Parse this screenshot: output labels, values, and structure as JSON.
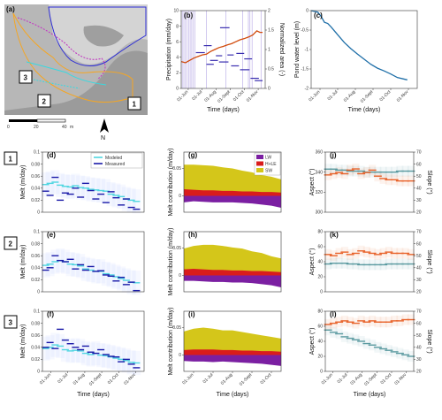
{
  "map": {
    "panel_label": "(a)",
    "site_labels": [
      "1",
      "2",
      "3"
    ],
    "scale_ticks": [
      "0",
      "20",
      "40"
    ],
    "scale_unit": "m",
    "north_symbol": "N"
  },
  "row_labels": [
    "1",
    "2",
    "3"
  ],
  "panel_labels": [
    "(b)",
    "(c)",
    "(d)",
    "(e)",
    "(f)",
    "(g)",
    "(h)",
    "(i)",
    "(j)",
    "(k)",
    "(l)"
  ],
  "colors": {
    "precip": "#5b3cc4",
    "area": "#d14a0b",
    "pond": "#1f6fa8",
    "modeled": "#4fd6e0",
    "measured": "#1a1aa8",
    "lw": "#7b1fa2",
    "hle": "#d91c1c",
    "sw": "#d4c61a",
    "aspect": "#5b9aa0",
    "slope": "#e8632b",
    "map_orange": "#f5a623",
    "map_blue": "#2b2bd6",
    "map_magenta": "#c23cc2",
    "map_cyan": "#38d9e0"
  },
  "chart_data": [
    {
      "id": "b",
      "type": "line",
      "xlabel": "Time (days)",
      "ylabel_left": "Precipitation (mm/day)",
      "ylabel_right": "Normalized area (-)",
      "x_ticks": [
        "01-Jun",
        "01-Jul",
        "01-Aug",
        "01-Sept",
        "01-Oct",
        "01-Nov"
      ],
      "x_range": [
        0,
        160
      ],
      "ylim_left": [
        0,
        10
      ],
      "yticks_left": [
        0,
        2,
        4,
        6,
        8,
        10
      ],
      "ylim_right": [
        0,
        2
      ],
      "yticks_right": [
        0,
        0.5,
        1,
        1.5,
        2
      ],
      "precip_segments": [
        {
          "x0": 28,
          "x1": 45,
          "y": 4.6
        },
        {
          "x0": 43,
          "x1": 58,
          "y": 5.5
        },
        {
          "x0": 48,
          "x1": 62,
          "y": 3.1
        },
        {
          "x0": 55,
          "x1": 70,
          "y": 3.6
        },
        {
          "x0": 66,
          "x1": 78,
          "y": 4.2
        },
        {
          "x0": 72,
          "x1": 90,
          "y": 3.4
        },
        {
          "x0": 74,
          "x1": 92,
          "y": 7.8
        },
        {
          "x0": 88,
          "x1": 100,
          "y": 4.3
        },
        {
          "x0": 95,
          "x1": 110,
          "y": 2.9
        },
        {
          "x0": 105,
          "x1": 120,
          "y": 4.5
        },
        {
          "x0": 112,
          "x1": 130,
          "y": 2.4
        },
        {
          "x0": 120,
          "x1": 135,
          "y": 3.8
        },
        {
          "x0": 132,
          "x1": 148,
          "y": 1.3
        },
        {
          "x0": 140,
          "x1": 155,
          "y": 1.0
        }
      ],
      "event_days": [
        2,
        5,
        8,
        11,
        14,
        17,
        20,
        23,
        26,
        48,
        85,
        117,
        128,
        131,
        135,
        152
      ],
      "area_x": [
        0,
        8,
        16,
        24,
        32,
        40,
        48,
        56,
        64,
        72,
        80,
        88,
        96,
        104,
        112,
        120,
        128,
        136,
        144,
        150,
        155
      ],
      "area_y": [
        0.69,
        0.66,
        0.72,
        0.78,
        0.82,
        0.86,
        0.88,
        0.95,
        1.0,
        1.05,
        1.08,
        1.12,
        1.15,
        1.2,
        1.25,
        1.28,
        1.32,
        1.37,
        1.48,
        1.44,
        1.44
      ]
    },
    {
      "id": "c",
      "type": "line",
      "xlabel": "Time (days)",
      "ylabel": "Pond water level (m)",
      "x_ticks": [
        "01-Jun",
        "01-Jul",
        "01-Aug",
        "01-Sept",
        "01-Oct",
        "01-Nov"
      ],
      "x_range": [
        0,
        160
      ],
      "ylim": [
        -2.0,
        0
      ],
      "yticks": [
        -2,
        -1.5,
        -1,
        -0.5,
        0
      ],
      "x": [
        0,
        5,
        10,
        15,
        20,
        25,
        30,
        40,
        50,
        60,
        70,
        80,
        90,
        100,
        110,
        120,
        130,
        140,
        145
      ],
      "y": [
        0.0,
        -0.02,
        -0.04,
        -0.15,
        -0.3,
        -0.33,
        -0.42,
        -0.62,
        -0.82,
        -0.98,
        -1.12,
        -1.25,
        -1.38,
        -1.48,
        -1.55,
        -1.63,
        -1.72,
        -1.76,
        -1.78
      ]
    },
    {
      "id": "d",
      "row": 1,
      "type": "scatter",
      "ylabel": "Melt (m/day)",
      "legend": [
        "Modeled",
        "Measured"
      ],
      "ylim": [
        0,
        0.1
      ],
      "yticks": [
        0,
        0.02,
        0.04,
        0.06,
        0.08,
        0.1
      ],
      "x_range": [
        0,
        160
      ],
      "modeled_x": [
        5,
        12,
        20,
        28,
        36,
        44,
        52,
        60,
        68,
        76,
        84,
        92,
        100,
        108,
        116,
        124,
        132,
        140,
        148
      ],
      "modeled_y": [
        0.046,
        0.048,
        0.05,
        0.045,
        0.043,
        0.042,
        0.044,
        0.041,
        0.04,
        0.038,
        0.037,
        0.036,
        0.035,
        0.03,
        0.028,
        0.026,
        0.022,
        0.02,
        0.018
      ],
      "measured_x": [
        5,
        12,
        20,
        28,
        36,
        44,
        52,
        60,
        68,
        76,
        84,
        92,
        100,
        108,
        116,
        124,
        132,
        140,
        148
      ],
      "measured_y": [
        0.035,
        0.028,
        0.058,
        0.02,
        0.032,
        0.03,
        0.04,
        0.025,
        0.048,
        0.036,
        0.022,
        0.03,
        0.016,
        0.034,
        0.024,
        0.012,
        0.022,
        0.008,
        0.005
      ]
    },
    {
      "id": "e",
      "row": 2,
      "type": "scatter",
      "ylabel": "Melt (m/day)",
      "ylim": [
        0,
        0.1
      ],
      "yticks": [
        0,
        0.02,
        0.04,
        0.06,
        0.08,
        0.1
      ],
      "x_range": [
        0,
        160
      ],
      "modeled_x": [
        5,
        12,
        20,
        28,
        36,
        44,
        52,
        60,
        68,
        76,
        84,
        92,
        100,
        108,
        116,
        124,
        132,
        140,
        148
      ],
      "modeled_y": [
        0.044,
        0.046,
        0.05,
        0.052,
        0.05,
        0.046,
        0.045,
        0.043,
        0.038,
        0.036,
        0.034,
        0.034,
        0.03,
        0.028,
        0.025,
        0.022,
        0.019,
        0.016,
        0.015
      ],
      "measured_x": [
        5,
        12,
        20,
        28,
        36,
        44,
        52,
        60,
        68,
        76,
        84,
        92,
        100,
        108,
        116,
        124,
        132,
        140,
        148
      ],
      "measured_y": [
        0.036,
        0.04,
        0.06,
        0.052,
        0.05,
        0.054,
        0.038,
        0.045,
        0.036,
        0.042,
        0.034,
        0.035,
        0.028,
        0.026,
        0.018,
        0.024,
        0.012,
        0.016,
        0.002
      ]
    },
    {
      "id": "f",
      "row": 3,
      "type": "scatter",
      "ylabel": "Melt (m/day)",
      "xlabel": "Time (days)",
      "x_ticks": [
        "01-Jun",
        "01-Jul",
        "01-Aug",
        "01-Sept",
        "01-Oct",
        "01-Nov"
      ],
      "ylim": [
        0,
        0.1
      ],
      "yticks": [
        0,
        0.02,
        0.04,
        0.06,
        0.08,
        0.1
      ],
      "x_range": [
        0,
        160
      ],
      "modeled_x": [
        5,
        12,
        20,
        28,
        36,
        44,
        52,
        60,
        68,
        76,
        84,
        92,
        100,
        108,
        116,
        124,
        132,
        140,
        148
      ],
      "modeled_y": [
        0.038,
        0.04,
        0.044,
        0.042,
        0.036,
        0.034,
        0.035,
        0.034,
        0.03,
        0.028,
        0.03,
        0.027,
        0.026,
        0.024,
        0.022,
        0.02,
        0.018,
        0.015,
        0.014
      ],
      "measured_x": [
        5,
        12,
        20,
        28,
        36,
        44,
        52,
        60,
        68,
        76,
        84,
        92,
        100,
        108,
        116,
        124,
        132,
        140,
        148
      ],
      "measured_y": [
        0.04,
        0.048,
        0.038,
        0.07,
        0.052,
        0.046,
        0.04,
        0.036,
        0.042,
        0.032,
        0.03,
        0.036,
        0.028,
        0.025,
        0.024,
        0.016,
        0.02,
        0.012,
        0.006
      ]
    },
    {
      "id": "g",
      "row": 1,
      "type": "area",
      "ylabel": "Melt contribution (m/day)",
      "legend": [
        "LW",
        "H+LE",
        "SW"
      ],
      "ylim": [
        -0.03,
        0.08
      ],
      "yticks": [
        0,
        0.05
      ],
      "x": [
        0,
        16,
        32,
        48,
        64,
        80,
        96,
        112,
        128,
        144,
        160
      ],
      "lw": [
        -0.012,
        -0.01,
        -0.011,
        -0.012,
        -0.012,
        -0.012,
        -0.013,
        -0.014,
        -0.016,
        -0.018,
        -0.022
      ],
      "hle": [
        0.012,
        0.011,
        0.01,
        0.01,
        0.009,
        0.009,
        0.008,
        0.008,
        0.007,
        0.007,
        0.006
      ],
      "sw": [
        0.045,
        0.046,
        0.046,
        0.045,
        0.043,
        0.041,
        0.038,
        0.035,
        0.031,
        0.028,
        0.024
      ]
    },
    {
      "id": "h",
      "row": 2,
      "type": "area",
      "ylabel": "Melt contribution (m/day)",
      "ylim": [
        -0.03,
        0.08
      ],
      "yticks": [
        0,
        0.05
      ],
      "x": [
        0,
        16,
        32,
        48,
        64,
        80,
        96,
        112,
        128,
        144,
        160
      ],
      "lw": [
        -0.01,
        -0.01,
        -0.011,
        -0.012,
        -0.012,
        -0.013,
        -0.013,
        -0.014,
        -0.016,
        -0.018,
        -0.022
      ],
      "hle": [
        0.011,
        0.012,
        0.011,
        0.01,
        0.01,
        0.009,
        0.009,
        0.008,
        0.008,
        0.007,
        0.006
      ],
      "sw": [
        0.038,
        0.042,
        0.045,
        0.046,
        0.044,
        0.042,
        0.04,
        0.036,
        0.033,
        0.028,
        0.025
      ]
    },
    {
      "id": "i",
      "row": 3,
      "type": "area",
      "ylabel": "Melt contribution (m/day)",
      "xlabel": "Time (days)",
      "x_ticks": [
        "01-Jun",
        "01-Jul",
        "01-Aug",
        "01-Sept",
        "01-Oct"
      ],
      "ylim": [
        -0.03,
        0.08
      ],
      "yticks": [
        0,
        0.05
      ],
      "x": [
        0,
        16,
        32,
        48,
        64,
        80,
        96,
        112,
        128,
        144,
        160
      ],
      "lw": [
        -0.011,
        -0.012,
        -0.012,
        -0.013,
        -0.012,
        -0.013,
        -0.014,
        -0.015,
        -0.016,
        -0.018,
        -0.02
      ],
      "hle": [
        0.009,
        0.01,
        0.01,
        0.01,
        0.009,
        0.009,
        0.008,
        0.008,
        0.007,
        0.007,
        0.006
      ],
      "sw": [
        0.034,
        0.038,
        0.04,
        0.038,
        0.036,
        0.036,
        0.034,
        0.031,
        0.029,
        0.026,
        0.024
      ]
    },
    {
      "id": "j",
      "row": 1,
      "type": "scatter",
      "ylabel_left": "Aspect (°)",
      "ylabel_right": "Slope (°)",
      "ylim_left": [
        300,
        360
      ],
      "yticks_left": [
        300,
        320,
        340,
        360
      ],
      "ylim_right": [
        20,
        70
      ],
      "yticks_right": [
        20,
        30,
        40,
        50,
        60,
        70
      ],
      "x_range": [
        0,
        160
      ],
      "aspect_x": [
        5,
        15,
        25,
        35,
        45,
        55,
        65,
        75,
        85,
        95,
        105,
        115,
        125,
        135,
        145,
        155
      ],
      "aspect_y": [
        343,
        343,
        342,
        342,
        341,
        341,
        341,
        340,
        340,
        340,
        340,
        340,
        340,
        341,
        341,
        341
      ],
      "slope_x": [
        5,
        15,
        25,
        35,
        45,
        55,
        65,
        75,
        85,
        95,
        105,
        115,
        125,
        135,
        145,
        155
      ],
      "slope_y": [
        51,
        52,
        53,
        52,
        55,
        56,
        52,
        53,
        55,
        50,
        48,
        47,
        47,
        46,
        46,
        46
      ]
    },
    {
      "id": "k",
      "row": 2,
      "type": "scatter",
      "ylabel_left": "Aspect (°)",
      "ylabel_right": "Slope (°)",
      "ylim_left": [
        0,
        80
      ],
      "yticks_left": [
        0,
        20,
        40,
        60,
        80
      ],
      "ylim_right": [
        20,
        70
      ],
      "yticks_right": [
        20,
        30,
        40,
        50,
        60,
        70
      ],
      "x_range": [
        0,
        160
      ],
      "aspect_x": [
        5,
        15,
        25,
        35,
        45,
        55,
        65,
        75,
        85,
        95,
        105,
        115,
        125,
        135,
        145,
        155
      ],
      "aspect_y": [
        37,
        38,
        38,
        38,
        37,
        37,
        36,
        36,
        36,
        36,
        36,
        37,
        37,
        37,
        37,
        37
      ],
      "slope_x": [
        5,
        15,
        25,
        35,
        45,
        55,
        65,
        75,
        85,
        95,
        105,
        115,
        125,
        135,
        145,
        155
      ],
      "slope_y": [
        51,
        50,
        52,
        53,
        51,
        52,
        54,
        53,
        52,
        51,
        52,
        53,
        52,
        52,
        52,
        51
      ]
    },
    {
      "id": "l",
      "row": 3,
      "type": "scatter",
      "ylabel_left": "Aspect (°)",
      "ylabel_right": "Slope (°)",
      "xlabel": "Time (days)",
      "x_ticks": [
        "01-Jun",
        "01-Jul",
        "01-Aug",
        "01-Sept",
        "01-Oct",
        "01-Nov"
      ],
      "ylim_left": [
        0,
        80
      ],
      "yticks_left": [
        0,
        20,
        40,
        60,
        80
      ],
      "ylim_right": [
        20,
        70
      ],
      "yticks_right": [
        20,
        30,
        40,
        50,
        60,
        70
      ],
      "x_range": [
        0,
        160
      ],
      "aspect_x": [
        5,
        15,
        25,
        35,
        45,
        55,
        65,
        75,
        85,
        95,
        105,
        115,
        125,
        135,
        145,
        155
      ],
      "aspect_y": [
        55,
        52,
        50,
        46,
        44,
        42,
        40,
        37,
        35,
        32,
        30,
        28,
        26,
        24,
        22,
        20
      ],
      "slope_x": [
        5,
        15,
        25,
        35,
        45,
        55,
        65,
        75,
        85,
        95,
        105,
        115,
        125,
        135,
        145,
        155
      ],
      "slope_y": [
        59,
        60,
        61,
        62,
        61,
        60,
        62,
        61,
        62,
        61,
        61,
        61,
        62,
        62,
        63,
        63
      ]
    }
  ]
}
